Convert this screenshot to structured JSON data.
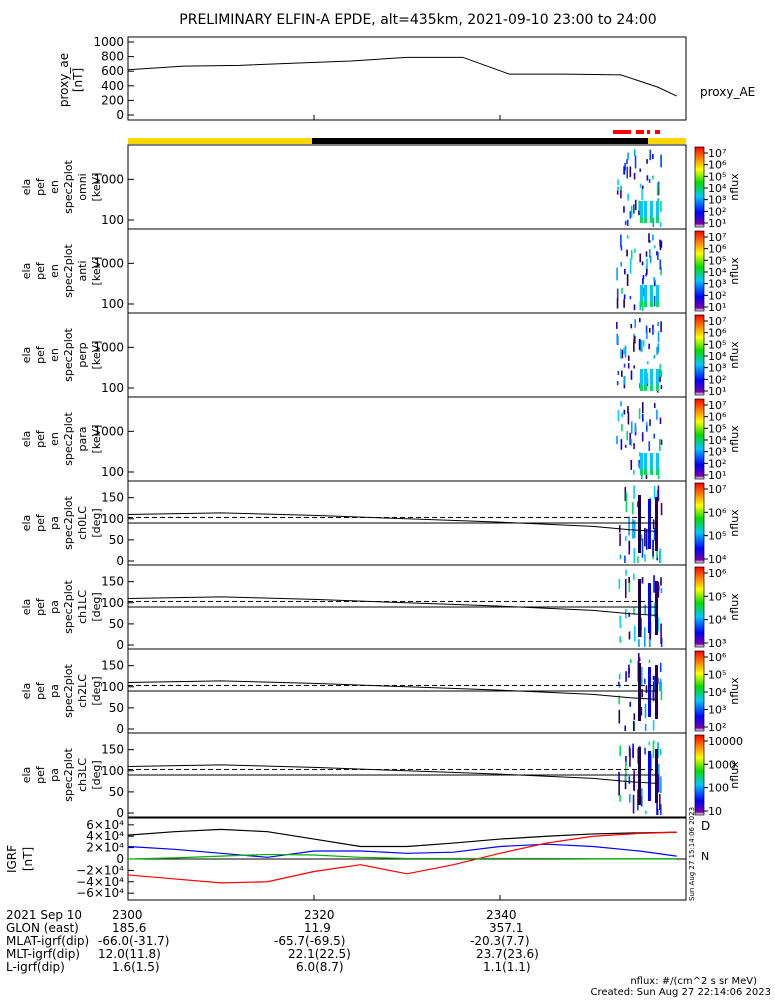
{
  "title": "PRELIMINARY ELFIN-A EPDE, alt=435km, 2021-09-10 23:00 to 24:00",
  "colors": {
    "sci_zone_yellow": "#ffd700",
    "sci_zone_black": "#000000",
    "flag_red": "#ff0000",
    "geo_x": "#000000",
    "geo_y": "#0000ff",
    "geo_z": "#ff0000",
    "geo_green": "#00b000"
  },
  "ae_panel": {
    "ylabel": "proxy_ae",
    "units": "[nT]",
    "legend": "proxy_AE",
    "ticks": [
      "1000",
      "800",
      "600",
      "400",
      "200",
      "0"
    ]
  },
  "energy_panels": [
    {
      "label": [
        "ela",
        "pef",
        "en",
        "spec2plot",
        "omni",
        "[keV]"
      ],
      "ticks": [
        "1000",
        "100"
      ]
    },
    {
      "label": [
        "ela",
        "pef",
        "en",
        "spec2plot",
        "anti",
        "[keV]"
      ],
      "ticks": [
        "1000",
        "100"
      ]
    },
    {
      "label": [
        "ela",
        "pef",
        "en",
        "spec2plot",
        "perp",
        "[keV]"
      ],
      "ticks": [
        "1000",
        "100"
      ]
    },
    {
      "label": [
        "ela",
        "pef",
        "en",
        "spec2plot",
        "para",
        "[keV]"
      ],
      "ticks": [
        "1000",
        "100"
      ]
    }
  ],
  "pa_panels": [
    {
      "label": [
        "ela",
        "pef",
        "pa",
        "spec2plot",
        "ch0LC",
        "[deg]"
      ],
      "ticks": [
        "150",
        "100",
        "50",
        "0"
      ]
    },
    {
      "label": [
        "ela",
        "pef",
        "pa",
        "spec2plot",
        "ch1LC",
        "[deg]"
      ],
      "ticks": [
        "150",
        "100",
        "50",
        "0"
      ]
    },
    {
      "label": [
        "ela",
        "pef",
        "pa",
        "spec2plot",
        "ch2LC",
        "[deg]"
      ],
      "ticks": [
        "150",
        "100",
        "50",
        "0"
      ]
    },
    {
      "label": [
        "ela",
        "pef",
        "pa",
        "spec2plot",
        "ch3LC",
        "[deg]"
      ],
      "ticks": [
        "150",
        "100",
        "50",
        "0"
      ]
    }
  ],
  "colorbars": [
    {
      "unit": "nflux",
      "ticks": [
        "10⁷",
        "10⁶",
        "10⁵",
        "10⁴",
        "10³",
        "10²",
        "10¹"
      ]
    },
    {
      "unit": "nflux",
      "ticks": [
        "10⁷",
        "10⁶",
        "10⁵",
        "10⁴",
        "10³",
        "10²",
        "10¹"
      ]
    },
    {
      "unit": "nflux",
      "ticks": [
        "10⁷",
        "10⁶",
        "10⁵",
        "10⁴",
        "10³",
        "10²",
        "10¹"
      ]
    },
    {
      "unit": "nflux",
      "ticks": [
        "10⁷",
        "10⁶",
        "10⁵",
        "10⁴",
        "10³",
        "10²",
        "10¹"
      ]
    },
    {
      "unit": "nflux",
      "ticks": [
        "10⁷",
        "10⁶",
        "10⁵",
        "10⁴"
      ]
    },
    {
      "unit": "nflux",
      "ticks": [
        "10⁶",
        "10⁵",
        "10⁴",
        "10³"
      ]
    },
    {
      "unit": "nflux",
      "ticks": [
        "10⁶",
        "10⁵",
        "10⁴",
        "10³",
        "10²"
      ]
    },
    {
      "unit": "nflux",
      "ticks": [
        "10000",
        "1000",
        "100",
        "10"
      ]
    }
  ],
  "igrf_panel": {
    "ylabel": "IGRF",
    "units": "[nT]",
    "ticks": [
      "6×10⁴",
      "4×10⁴",
      "2×10⁴",
      "0",
      "−2×10⁴",
      "−4×10⁴",
      "−6×10⁴"
    ],
    "legend": [
      "D",
      "N"
    ],
    "side_stamp": "Sun Aug 27 15:14:06 2023"
  },
  "x_ticks": [
    "2300",
    "2320",
    "2340"
  ],
  "footer": {
    "rows": [
      {
        "label": "2021 Sep 10",
        "values": [
          "2300",
          "2320",
          "2340"
        ]
      },
      {
        "label": "GLON (east)",
        "values": [
          "185.6",
          "11.9",
          "357.1"
        ]
      },
      {
        "label": "MLAT-igrf(dip)",
        "values": [
          "-66.0(-31.7)",
          "-65.7(-69.5)",
          "-20.3(7.7)"
        ]
      },
      {
        "label": "MLT-igrf(dip)",
        "values": [
          "12.0(11.8)",
          "22.1(22.5)",
          "23.7(23.6)"
        ]
      },
      {
        "label": "L-igrf(dip)",
        "values": [
          "1.6(1.5)",
          "6.0(8.7)",
          "1.1(1.1)"
        ]
      }
    ],
    "units_note": "nflux: #/(cm^2 s sr MeV)",
    "created": "Created: Sun Aug 27 22:14:06 2023"
  },
  "chart_data": [
    {
      "type": "line",
      "title": "PRELIMINARY ELFIN-A EPDE, alt=435km, 2021-09-10 23:00 to 24:00",
      "ylabel": "proxy_ae [nT]",
      "ylim": [
        0,
        1000
      ],
      "x_minutes": [
        0,
        6,
        12,
        18,
        24,
        30,
        36,
        41,
        47,
        53,
        57,
        59
      ],
      "series": [
        {
          "name": "proxy_AE",
          "values": [
            620,
            670,
            680,
            710,
            740,
            790,
            790,
            560,
            560,
            550,
            380,
            260
          ]
        }
      ]
    },
    {
      "type": "heatmap",
      "ylabel": "energy [keV]",
      "ylim": [
        60,
        7000
      ],
      "yscale": "log",
      "xlim": [
        0,
        60
      ],
      "zscale": "log",
      "zlim": [
        10,
        10000000
      ],
      "zlabel": "nflux",
      "panels": [
        "omni",
        "anti",
        "perp",
        "para"
      ],
      "note": "activity confined to roughly 23:53 – 23:57"
    },
    {
      "type": "line",
      "ylabel": "pitch angle [deg]",
      "ylim": [
        0,
        180
      ],
      "x_minutes": [
        0,
        10,
        20,
        30,
        40,
        50,
        54,
        57
      ],
      "series": [
        {
          "values": [
            110,
            114,
            108,
            100,
            92,
            82,
            74,
            70
          ]
        },
        {
          "values": [
            103,
            103,
            103,
            103,
            103,
            103,
            103,
            103
          ]
        },
        {
          "values": [
            90,
            90,
            90,
            90,
            90,
            90,
            90,
            90
          ]
        }
      ]
    },
    {
      "type": "line",
      "ylabel": "IGRF [nT]",
      "ylim": [
        -65000,
        65000
      ],
      "x_minutes": [
        0,
        5,
        10,
        15,
        20,
        25,
        30,
        35,
        40,
        45,
        50,
        55,
        59
      ],
      "series": [
        {
          "name": "D",
          "values": [
            42000,
            48000,
            52000,
            48000,
            35000,
            22000,
            22000,
            28000,
            35000,
            40000,
            44000,
            46000,
            47000
          ]
        },
        {
          "values": [
            22000,
            17000,
            10000,
            3000,
            14000,
            14000,
            10000,
            12000,
            22000,
            26000,
            22000,
            14000,
            5000
          ]
        },
        {
          "name": "N",
          "values": [
            -28000,
            -35000,
            -42000,
            -40000,
            -22000,
            -10000,
            -26000,
            -10000,
            10000,
            28000,
            40000,
            45000,
            47000
          ]
        },
        {
          "values": [
            0,
            2000,
            5000,
            8000,
            7000,
            3000,
            1000,
            1000,
            1000,
            1000,
            500,
            500,
            500
          ]
        }
      ]
    }
  ]
}
